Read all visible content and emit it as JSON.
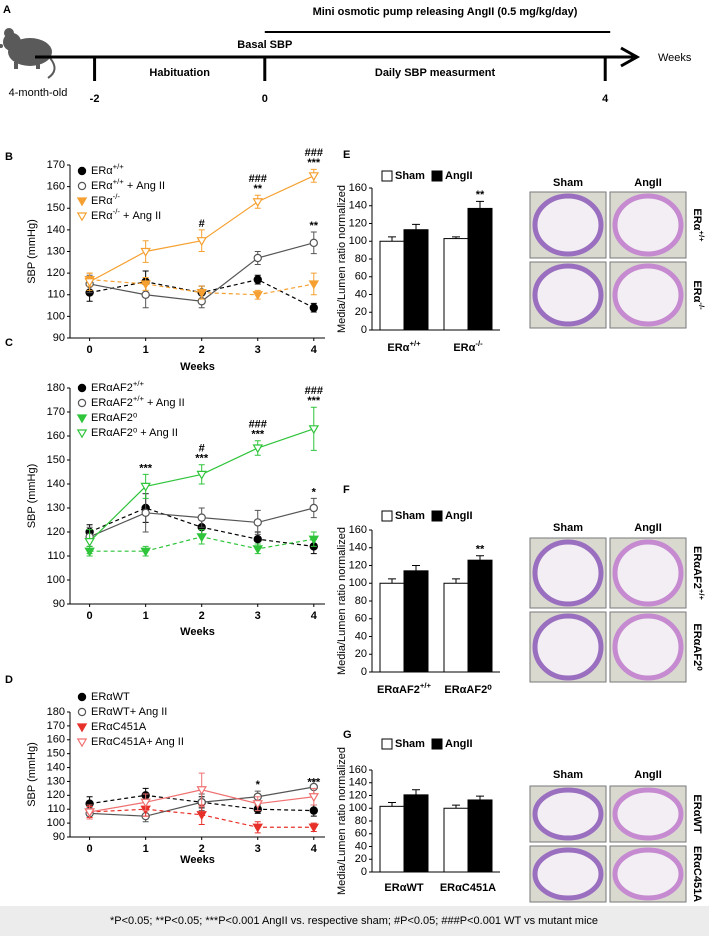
{
  "timeline": {
    "panel": "A",
    "pump": "Mini osmotic pump releasing AngII (0.5 mg/kg/day)",
    "basal": "Basal SBP",
    "habituation": "Habituation",
    "daily": "Daily SBP measurment",
    "axis_label": "Weeks",
    "age": "4-month-old",
    "xlim": [
      -2.7,
      4.35
    ],
    "ticks": [
      -2,
      0,
      4
    ]
  },
  "chart_data": [
    {
      "type": "line",
      "panel": "B",
      "xlabel": "Weeks",
      "ylabel": "SBP (mmHg)",
      "x": [
        0,
        1,
        2,
        3,
        4
      ],
      "xlim": [
        -0.35,
        4.2
      ],
      "xticks": [
        0,
        1,
        2,
        3,
        4
      ],
      "ylim": [
        90,
        170
      ],
      "yticks": [
        90,
        100,
        110,
        120,
        130,
        140,
        150,
        160,
        170
      ],
      "series": [
        {
          "name": "ERα+/+",
          "color": "#000000",
          "marker": "circle",
          "filled": true,
          "dashed": true,
          "values": [
            111,
            116,
            111,
            117,
            104
          ],
          "errors": [
            4,
            5,
            3,
            2,
            2
          ]
        },
        {
          "name": "ERα+/+ + Ang II",
          "color": "#555555",
          "marker": "circle",
          "filled": false,
          "dashed": false,
          "values": [
            115,
            110,
            107,
            127,
            134
          ],
          "errors": [
            4,
            6,
            3,
            3,
            5
          ],
          "marks": [
            null,
            null,
            null,
            null,
            [
              "**"
            ]
          ]
        },
        {
          "name": "ERα-/-",
          "color": "#f5a030",
          "marker": "triangle",
          "filled": true,
          "dashed": true,
          "values": [
            117,
            115,
            111,
            110,
            115
          ],
          "errors": [
            3,
            3,
            3,
            2,
            5
          ]
        },
        {
          "name": "ERα-/- + Ang II",
          "color": "#f5a030",
          "marker": "triangle",
          "filled": false,
          "dashed": false,
          "values": [
            116,
            130,
            135,
            153,
            165
          ],
          "errors": [
            4,
            5,
            5,
            3,
            3
          ],
          "marks": [
            null,
            null,
            [
              "#"
            ],
            [
              "###",
              "**"
            ],
            [
              "###",
              "***"
            ]
          ]
        }
      ]
    },
    {
      "type": "line",
      "panel": "C",
      "xlabel": "Weeks",
      "ylabel": "SBP (mmHg)",
      "x": [
        0,
        1,
        2,
        3,
        4
      ],
      "xlim": [
        -0.35,
        4.2
      ],
      "xticks": [
        0,
        1,
        2,
        3,
        4
      ],
      "ylim": [
        90,
        180
      ],
      "yticks": [
        90,
        100,
        110,
        120,
        130,
        140,
        150,
        160,
        170,
        180
      ],
      "series": [
        {
          "name": "ERαAF2+/+",
          "color": "#000000",
          "marker": "circle",
          "filled": true,
          "dashed": true,
          "values": [
            120,
            130,
            122,
            117,
            114
          ],
          "errors": [
            3,
            6,
            3,
            3,
            3
          ]
        },
        {
          "name": "ERαAF2+/+ + Ang II",
          "color": "#555555",
          "marker": "circle",
          "filled": false,
          "dashed": false,
          "values": [
            118,
            128,
            126,
            124,
            130
          ],
          "errors": [
            4,
            8,
            4,
            5,
            4
          ],
          "marks": [
            null,
            null,
            null,
            null,
            [
              "*"
            ]
          ]
        },
        {
          "name": "ERαAF2⁰",
          "color": "#2fc43a",
          "marker": "triangle",
          "filled": true,
          "dashed": true,
          "values": [
            112,
            112,
            118,
            113,
            117
          ],
          "errors": [
            2,
            2,
            3,
            2,
            3
          ]
        },
        {
          "name": "ERαAF2⁰ + Ang II",
          "color": "#2fc43a",
          "marker": "triangle",
          "filled": false,
          "dashed": false,
          "values": [
            116,
            139,
            144,
            155,
            163
          ],
          "errors": [
            5,
            5,
            4,
            3,
            9
          ],
          "marks": [
            null,
            [
              "***"
            ],
            [
              "#",
              "***"
            ],
            [
              "###",
              "***"
            ],
            [
              "###",
              "***"
            ]
          ]
        }
      ]
    },
    {
      "type": "line",
      "panel": "D",
      "xlabel": "Weeks",
      "ylabel": "SBP (mmHg)",
      "x": [
        0,
        1,
        2,
        3,
        4
      ],
      "xlim": [
        -0.35,
        4.2
      ],
      "xticks": [
        0,
        1,
        2,
        3,
        4
      ],
      "ylim": [
        90,
        180
      ],
      "yticks": [
        90,
        100,
        110,
        120,
        130,
        140,
        150,
        160,
        170,
        180
      ],
      "series": [
        {
          "name": "ERαWT",
          "color": "#000000",
          "marker": "circle",
          "filled": true,
          "dashed": true,
          "values": [
            114,
            120,
            115,
            110,
            109
          ],
          "errors": [
            5,
            5,
            4,
            3,
            4
          ]
        },
        {
          "name": "ERαWT+ Ang II",
          "color": "#555555",
          "marker": "circle",
          "filled": false,
          "dashed": false,
          "values": [
            107,
            105,
            115,
            119,
            126
          ],
          "errors": [
            4,
            4,
            6,
            4,
            5
          ],
          "marks": [
            null,
            null,
            null,
            [
              "*"
            ],
            null
          ]
        },
        {
          "name": "ERαC451A",
          "color": "#e8302a",
          "marker": "triangle",
          "filled": true,
          "dashed": true,
          "values": [
            108,
            110,
            106,
            97,
            97
          ],
          "errors": [
            4,
            5,
            7,
            4,
            3
          ]
        },
        {
          "name": "ERαC451A+ Ang II",
          "color": "#f07070",
          "marker": "triangle",
          "filled": false,
          "dashed": false,
          "values": [
            108,
            115,
            124,
            114,
            119
          ],
          "errors": [
            5,
            6,
            12,
            5,
            6
          ],
          "marks": [
            null,
            null,
            null,
            null,
            [
              "***"
            ]
          ]
        }
      ]
    },
    {
      "type": "bar",
      "panel": "E",
      "ylabel": "Media/Lumen ratio normalized",
      "categories": [
        "ERα+/+",
        "ERα-/-"
      ],
      "ylim": [
        0,
        160
      ],
      "yticks": [
        0,
        20,
        40,
        60,
        80,
        100,
        120,
        140,
        160
      ],
      "series": [
        {
          "name": "Sham",
          "color": "#ffffff",
          "values": [
            100,
            103
          ],
          "errors": [
            5,
            2
          ]
        },
        {
          "name": "AngII",
          "color": "#000000",
          "values": [
            113,
            137
          ],
          "errors": [
            6,
            8
          ],
          "marks": [
            null,
            [
              "**"
            ]
          ]
        }
      ]
    },
    {
      "type": "bar",
      "panel": "F",
      "ylabel": "Media/Lumen ratio normalized",
      "categories": [
        "ERαAF2+/+",
        "ERαAF2⁰"
      ],
      "ylim": [
        0,
        160
      ],
      "yticks": [
        0,
        20,
        40,
        60,
        80,
        100,
        120,
        140,
        160
      ],
      "series": [
        {
          "name": "Sham",
          "color": "#ffffff",
          "values": [
            100,
            100
          ],
          "errors": [
            5,
            5
          ]
        },
        {
          "name": "AngII",
          "color": "#000000",
          "values": [
            114,
            126
          ],
          "errors": [
            6,
            5
          ],
          "marks": [
            null,
            [
              "**"
            ]
          ]
        }
      ]
    },
    {
      "type": "bar",
      "panel": "G",
      "ylabel": "Media/Lumen ratio normalized",
      "categories": [
        "ERαWT",
        "ERαC451A"
      ],
      "ylim": [
        0,
        160
      ],
      "yticks": [
        0,
        20,
        40,
        60,
        80,
        100,
        120,
        140,
        160
      ],
      "series": [
        {
          "name": "Sham",
          "color": "#ffffff",
          "values": [
            103,
            100
          ],
          "errors": [
            6,
            5
          ]
        },
        {
          "name": "AngII",
          "color": "#000000",
          "values": [
            121,
            113
          ],
          "errors": [
            8,
            6
          ]
        }
      ]
    }
  ],
  "histology": [
    {
      "columns": [
        "Sham",
        "AngII"
      ],
      "rows": [
        "ERα+/+",
        "ERα-/-"
      ]
    },
    {
      "columns": [
        "Sham",
        "AngII"
      ],
      "rows": [
        "ERαAF2+/+",
        "ERαAF2⁰"
      ]
    },
    {
      "columns": [
        "Sham",
        "AngII"
      ],
      "rows": [
        "ERαWT",
        "ERαC451A"
      ]
    }
  ],
  "footnote": "*P<0.05; **P<0.05; ***P<0.001 AngII vs. respective sham; #P<0.05; ###P<0.001 WT vs mutant mice"
}
